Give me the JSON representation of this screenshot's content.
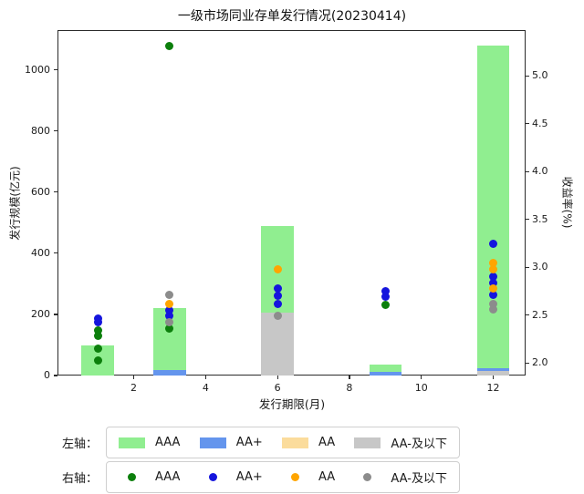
{
  "chart_data": {
    "type": "bar",
    "subtype": "stacked-bar-left-axis with scatter-right-axis",
    "title": "一级市场同业存单发行情况(20230414)",
    "xlabel": "发行期限(月)",
    "ylabel_left": "发行规模(亿元)",
    "ylabel_right": "收益率(%)",
    "x_ticks": [
      2,
      4,
      6,
      8,
      10,
      12
    ],
    "y_ticks_left": [
      0,
      200,
      400,
      600,
      800,
      1000
    ],
    "y_ticks_right": [
      "2.0",
      "2.5",
      "3.0",
      "3.5",
      "4.0",
      "4.5",
      "5.0"
    ],
    "xlim": [
      -0.12,
      12.9
    ],
    "ylim_left": [
      0,
      1130
    ],
    "ylim_right": [
      1.87,
      5.48
    ],
    "grid": false,
    "bar_width": 0.9,
    "categories": [
      1,
      3,
      6,
      9,
      12
    ],
    "bar_series_bottom_to_top": [
      {
        "name": "AA-及以下",
        "color": "#c7c7c7",
        "values": [
          0,
          0,
          205,
          0,
          15
        ]
      },
      {
        "name": "AA",
        "color": "#fbdc9c",
        "values": [
          0,
          0,
          0,
          0,
          0
        ]
      },
      {
        "name": "AA+",
        "color": "#6495ed",
        "values": [
          0,
          17,
          0,
          12,
          10
        ]
      },
      {
        "name": "AAA",
        "color": "#90ee90",
        "values": [
          97,
          203,
          285,
          25,
          1055
        ]
      }
    ],
    "bar_totals": [
      97,
      220,
      490,
      37,
      1080
    ],
    "scatter_series": [
      {
        "name": "AAA",
        "color": "#0c7f0c",
        "points": [
          [
            1,
            2.03
          ],
          [
            1,
            2.15
          ],
          [
            1,
            2.28
          ],
          [
            1,
            2.34
          ],
          [
            3,
            5.31
          ],
          [
            3,
            2.36
          ],
          [
            9,
            2.61
          ]
        ]
      },
      {
        "name": "AA+",
        "color": "#1515dd",
        "points": [
          [
            1,
            2.43
          ],
          [
            1,
            2.47
          ],
          [
            3,
            2.49
          ],
          [
            3,
            2.55
          ],
          [
            6,
            2.62
          ],
          [
            6,
            2.7
          ],
          [
            6,
            2.78
          ],
          [
            9,
            2.69
          ],
          [
            9,
            2.75
          ],
          [
            12,
            2.71
          ],
          [
            12,
            2.84
          ],
          [
            12,
            2.9
          ],
          [
            12,
            3.25
          ]
        ]
      },
      {
        "name": "AA",
        "color": "#ffa500",
        "points": [
          [
            3,
            2.62
          ],
          [
            6,
            2.98
          ],
          [
            12,
            2.78
          ],
          [
            12,
            2.98
          ],
          [
            12,
            3.05
          ]
        ]
      },
      {
        "name": "AA-及以下",
        "color": "#8c8c8c",
        "points": [
          [
            3,
            2.43
          ],
          [
            3,
            2.71
          ],
          [
            6,
            2.49
          ],
          [
            12,
            2.56
          ],
          [
            12,
            2.62
          ]
        ]
      }
    ]
  },
  "legend": {
    "rows": [
      {
        "axis_label": "左轴：",
        "marker": "patch",
        "items": [
          {
            "label": "AAA",
            "color": "#90ee90"
          },
          {
            "label": "AA+",
            "color": "#6495ed"
          },
          {
            "label": "AA",
            "color": "#fbdc9c"
          },
          {
            "label": "AA-及以下",
            "color": "#c7c7c7"
          }
        ]
      },
      {
        "axis_label": "右轴：",
        "marker": "dot",
        "items": [
          {
            "label": "AAA",
            "color": "#0c7f0c"
          },
          {
            "label": "AA+",
            "color": "#1515dd"
          },
          {
            "label": "AA",
            "color": "#ffa500"
          },
          {
            "label": "AA-及以下",
            "color": "#8c8c8c"
          }
        ]
      }
    ]
  }
}
